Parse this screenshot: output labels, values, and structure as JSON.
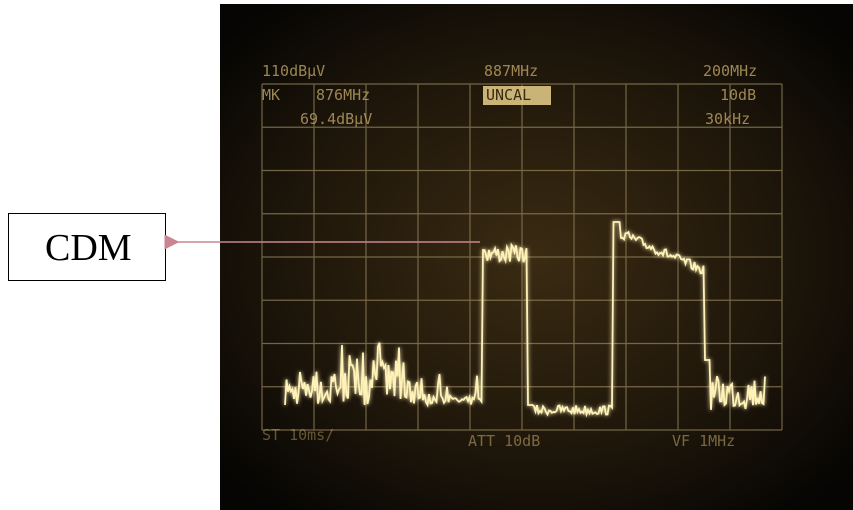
{
  "screen": {
    "top": [
      "110dBμV",
      "887MHz",
      "200MHz"
    ],
    "second": [
      "MK",
      "876MHz",
      "UNCAL",
      "10dB"
    ],
    "third": [
      "69.4dBμV",
      "30kHz"
    ],
    "bottom": [
      "ST 10ms/",
      "ATT 10dB",
      "VF 1MHz"
    ]
  },
  "callout": {
    "label": "CDM"
  }
}
